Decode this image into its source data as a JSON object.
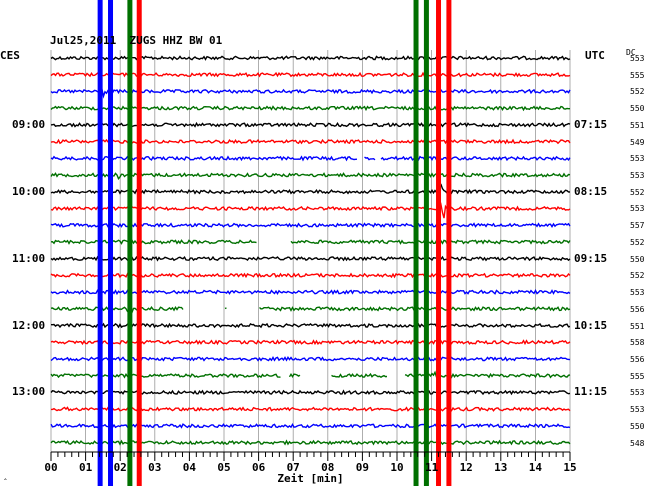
{
  "header": {
    "title": "Jul25,2011  ZUGS HHZ BW 01",
    "left_zone": "CES",
    "right_zone": "UTC",
    "dc_label": "DC"
  },
  "chart_data": {
    "type": "line",
    "title": "Jul25,2011  ZUGS HHZ BW 01",
    "xlabel": "Zeit [min]",
    "xlim": [
      0,
      15
    ],
    "x_ticks": [
      "00",
      "01",
      "02",
      "03",
      "04",
      "05",
      "06",
      "07",
      "08",
      "09",
      "10",
      "11",
      "12",
      "13",
      "14",
      "15"
    ],
    "trace_colors": [
      "#000000",
      "#ff0000",
      "#0000ff",
      "#007000"
    ],
    "grid": true,
    "left_time_labels": [
      {
        "row": 4,
        "text": "09:00"
      },
      {
        "row": 8,
        "text": "10:00"
      },
      {
        "row": 12,
        "text": "11:00"
      },
      {
        "row": 16,
        "text": "12:00"
      },
      {
        "row": 20,
        "text": "13:00"
      }
    ],
    "right_time_labels": [
      {
        "row": 4,
        "text": "07:15"
      },
      {
        "row": 8,
        "text": "08:15"
      },
      {
        "row": 12,
        "text": "09:15"
      },
      {
        "row": 16,
        "text": "10:15"
      },
      {
        "row": 20,
        "text": "11:15"
      }
    ],
    "dc_offsets": [
      553,
      555,
      552,
      550,
      551,
      549,
      553,
      553,
      552,
      553,
      557,
      552,
      550,
      552,
      553,
      556,
      551,
      558,
      556,
      555,
      553,
      553,
      550,
      548
    ],
    "gaps": [
      {
        "row": 6,
        "from": 8.85,
        "to": 9.05
      },
      {
        "row": 6,
        "from": 9.4,
        "to": 9.5
      },
      {
        "row": 11,
        "from": 5.95,
        "to": 6.9
      },
      {
        "row": 15,
        "from": 3.85,
        "to": 4.05
      },
      {
        "row": 15,
        "from": 4.1,
        "to": 5.0
      },
      {
        "row": 15,
        "from": 5.1,
        "to": 6.0
      },
      {
        "row": 19,
        "from": 6.65,
        "to": 6.85
      },
      {
        "row": 19,
        "from": 7.2,
        "to": 8.1
      },
      {
        "row": 19,
        "from": 9.75,
        "to": 10.2
      }
    ],
    "events": [
      {
        "row": 2,
        "x": 1.55,
        "amp": 8
      },
      {
        "row": 7,
        "x": 1.95,
        "amp": 6
      },
      {
        "row": 8,
        "x": 11.25,
        "amp": 10
      },
      {
        "row": 9,
        "x": 11.35,
        "amp": 12
      },
      {
        "row": 15,
        "x": 2.3,
        "amp": 7
      },
      {
        "row": 19,
        "x": 11.05,
        "amp": 6
      }
    ],
    "vertical_lines": [
      {
        "x": 1.42,
        "color": "#0000ff"
      },
      {
        "x": 1.72,
        "color": "#0000ff"
      },
      {
        "x": 2.28,
        "color": "#007000"
      },
      {
        "x": 2.55,
        "color": "#ff0000"
      },
      {
        "x": 10.55,
        "color": "#007000"
      },
      {
        "x": 10.85,
        "color": "#007000"
      },
      {
        "x": 11.2,
        "color": "#ff0000"
      },
      {
        "x": 11.5,
        "color": "#ff0000"
      }
    ],
    "corner_mark": "ˆ"
  }
}
